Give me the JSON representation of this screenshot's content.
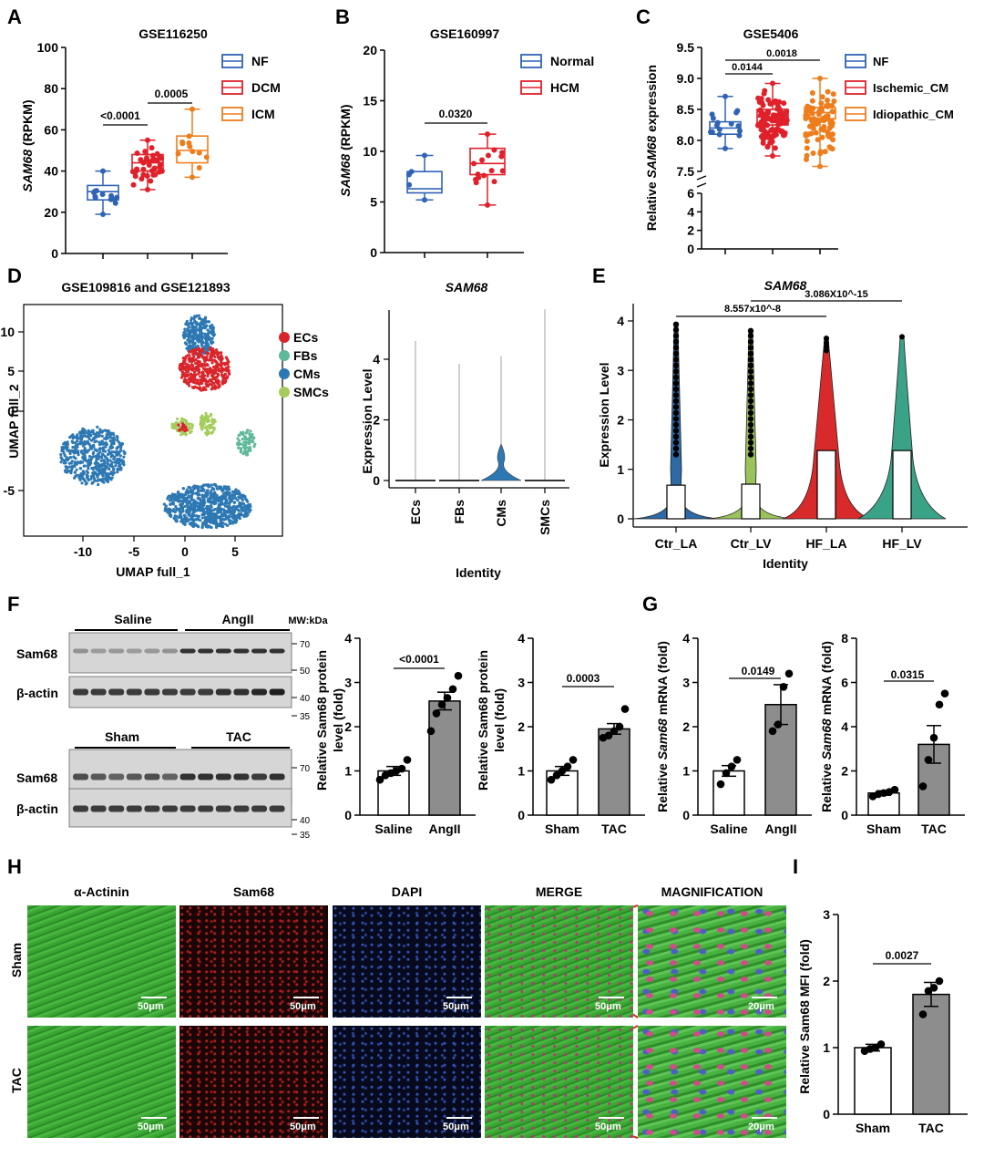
{
  "panels": {
    "A": "A",
    "B": "B",
    "C": "C",
    "D": "D",
    "E": "E",
    "F": "F",
    "G": "G",
    "H": "H",
    "I": "I"
  },
  "colors": {
    "blue": "#2f63b5",
    "red": "#e0202a",
    "orange": "#ee7d1c",
    "gray": "#8d8d8d",
    "ecs": "#d9242a",
    "fbs": "#5fb89b",
    "cms": "#2d78b3",
    "smcs": "#a4cd5c",
    "violin_la": "#2d6aa6",
    "violin_lv": "#9bc35b",
    "violin_hfla": "#d82a2a",
    "violin_hflv": "#3aa387",
    "microscopy_green": "#2fa32b",
    "microscopy_red": "#d62a2a",
    "microscopy_blue": "#3b63c8"
  },
  "panelA": {
    "title": "GSE116250",
    "ylabel_gene": "SAM68",
    "ylabel_unit": " (RPKM)",
    "yticks": [
      "0",
      "20",
      "40",
      "60",
      "80",
      "100"
    ],
    "legend": [
      "NF",
      "DCM",
      "ICM"
    ],
    "pvals": [
      "<0.0001",
      "0.0005"
    ]
  },
  "panelB": {
    "title": "GSE160997",
    "ylabel_gene": "SAM68",
    "ylabel_unit": " (RPKM)",
    "yticks": [
      "0",
      "5",
      "10",
      "15",
      "20"
    ],
    "legend": [
      "Normal",
      "HCM"
    ],
    "pvals": [
      "0.0320"
    ]
  },
  "panelC": {
    "title": "GSE5406",
    "ylabel_pre": "Relative ",
    "ylabel_gene": "SAM68",
    "ylabel_post": " expression",
    "yticks_top": [
      "7.5",
      "8.0",
      "8.5",
      "9.0",
      "9.5"
    ],
    "yticks_bottom": [
      "0",
      "2",
      "4",
      "6"
    ],
    "legend": [
      "NF",
      "Ischemic_CM",
      "Idiopathic_CM"
    ],
    "pvals": [
      "0.0144",
      "0.0018"
    ]
  },
  "panelD": {
    "title": "GSE109816 and GSE121893",
    "umap_xlabel": "UMAP full_1",
    "umap_ylabel": "UMAP full_2",
    "umap_xticks": [
      "-10",
      "-5",
      "0",
      "5"
    ],
    "umap_yticks": [
      "-5",
      "0",
      "5",
      "10"
    ],
    "legend": [
      "ECs",
      "FBs",
      "CMs",
      "SMCs"
    ],
    "violin_title": "SAM68",
    "violin_ylabel": "Expression Level",
    "violin_xlabel": "Identity",
    "violin_yticks": [
      "0",
      "2",
      "4"
    ],
    "violin_cats": [
      "ECs",
      "FBs",
      "CMs",
      "SMCs"
    ]
  },
  "panelE": {
    "title": "SAM68",
    "ylabel": "Expression Level",
    "xlabel": "Identity",
    "yticks": [
      "0",
      "1",
      "2",
      "3",
      "4"
    ],
    "cats": [
      "Ctr_LA",
      "Ctr_LV",
      "HF_LA",
      "HF_LV"
    ],
    "pvals": [
      "8.557x10^-8",
      "3.086X10^-15"
    ]
  },
  "panelF": {
    "blot1_groups": [
      "Saline",
      "AngII"
    ],
    "blot2_groups": [
      "Sham",
      "TAC"
    ],
    "mw_label": "MW:kDa",
    "row_labels": [
      "Sam68",
      "β-actin",
      "Sam68",
      "β-actin"
    ],
    "mw_marks": [
      "70",
      "50",
      "40",
      "35",
      "70",
      "40",
      "35"
    ],
    "bar1": {
      "ylabel1": "Relative Sam68 protein",
      "ylabel2": "level (fold)",
      "yticks": [
        "0",
        "1",
        "2",
        "3",
        "4"
      ],
      "cats": [
        "Saline",
        "AngII"
      ],
      "pval": "<0.0001"
    },
    "bar2": {
      "ylabel1": "Relative Sam68 protein",
      "ylabel2": "level (fold)",
      "yticks": [
        "0",
        "1",
        "2",
        "3",
        "4"
      ],
      "cats": [
        "Sham",
        "TAC"
      ],
      "pval": "0.0003"
    }
  },
  "panelG": {
    "bar1": {
      "ylabel_pre": "Relative ",
      "ylabel_gene": "Sam68",
      "ylabel_post": " mRNA (fold)",
      "yticks": [
        "0",
        "1",
        "2",
        "3",
        "4"
      ],
      "cats": [
        "Saline",
        "AngII"
      ],
      "pval": "0.0149"
    },
    "bar2": {
      "ylabel_pre": "Relative ",
      "ylabel_gene": "Sam68",
      "ylabel_post": " mRNA (fold)",
      "yticks": [
        "0",
        "2",
        "4",
        "6",
        "8"
      ],
      "cats": [
        "Sham",
        "TAC"
      ],
      "pval": "0.0315"
    }
  },
  "panelH": {
    "columns": [
      "α-Actinin",
      "Sam68",
      "DAPI",
      "MERGE",
      "MAGNIFICATION"
    ],
    "rows": [
      "Sham",
      "TAC"
    ],
    "scale_50": "50μm",
    "scale_20": "20μm"
  },
  "panelI": {
    "ylabel": "Relative Sam68 MFI (fold)",
    "yticks": [
      "0",
      "1",
      "2",
      "3"
    ],
    "cats": [
      "Sham",
      "TAC"
    ],
    "pval": "0.0027"
  },
  "chart_data": [
    {
      "type": "box",
      "panel": "A",
      "title": "GSE116250",
      "ylabel": "SAM68 (RPKM)",
      "ylim": [
        0,
        100
      ],
      "categories": [
        "NF",
        "DCM",
        "ICM"
      ],
      "series": [
        {
          "name": "NF",
          "min": 19,
          "q1": 26,
          "median": 30,
          "q3": 33,
          "max": 40
        },
        {
          "name": "DCM",
          "min": 31,
          "q1": 40,
          "median": 44,
          "q3": 48,
          "max": 55
        },
        {
          "name": "ICM",
          "min": 37,
          "q1": 44,
          "median": 50,
          "q3": 57,
          "max": 70
        }
      ]
    },
    {
      "type": "box",
      "panel": "B",
      "title": "GSE160997",
      "ylabel": "SAM68 (RPKM)",
      "ylim": [
        0,
        20
      ],
      "categories": [
        "Normal",
        "HCM"
      ],
      "series": [
        {
          "name": "Normal",
          "min": 5.2,
          "q1": 5.9,
          "median": 6.3,
          "q3": 8.0,
          "max": 9.6
        },
        {
          "name": "HCM",
          "min": 4.7,
          "q1": 7.7,
          "median": 8.8,
          "q3": 10.3,
          "max": 11.7
        }
      ]
    },
    {
      "type": "box",
      "panel": "C",
      "title": "GSE5406",
      "ylabel": "Relative SAM68 expression",
      "ylim": [
        7.5,
        9.5
      ],
      "categories": [
        "NF",
        "Ischemic_CM",
        "Idiopathic_CM"
      ],
      "series": [
        {
          "name": "NF",
          "min": 7.87,
          "q1": 8.1,
          "median": 8.2,
          "q3": 8.3,
          "max": 8.71
        },
        {
          "name": "Ischemic_CM",
          "min": 7.75,
          "q1": 8.25,
          "median": 8.38,
          "q3": 8.5,
          "max": 8.92
        },
        {
          "name": "Idiopathic_CM",
          "min": 7.58,
          "q1": 8.35,
          "median": 8.45,
          "q3": 8.53,
          "max": 9.0
        }
      ]
    },
    {
      "type": "bar",
      "panel": "F1",
      "categories": [
        "Saline",
        "AngII"
      ],
      "values": [
        1.0,
        2.58
      ],
      "errors": [
        0.1,
        0.2
      ],
      "ylim": [
        0,
        4
      ],
      "ylabel": "Relative Sam68 protein level (fold)",
      "points": [
        [
          0.8,
          0.9,
          0.95,
          1.0,
          1.05,
          1.25
        ],
        [
          1.9,
          2.3,
          2.5,
          2.65,
          2.85,
          3.15
        ]
      ]
    },
    {
      "type": "bar",
      "panel": "F2",
      "categories": [
        "Sham",
        "TAC"
      ],
      "values": [
        1.0,
        1.95
      ],
      "errors": [
        0.1,
        0.12
      ],
      "ylim": [
        0,
        4
      ],
      "ylabel": "Relative Sam68 protein level (fold)",
      "points": [
        [
          0.8,
          0.9,
          1.0,
          1.1,
          1.25
        ],
        [
          1.75,
          1.8,
          1.9,
          2.0,
          2.4
        ]
      ]
    },
    {
      "type": "bar",
      "panel": "G1",
      "categories": [
        "Saline",
        "AngII"
      ],
      "values": [
        1.0,
        2.5
      ],
      "errors": [
        0.12,
        0.45
      ],
      "ylim": [
        0,
        4
      ],
      "ylabel": "Relative Sam68 mRNA (fold)",
      "points": [
        [
          0.7,
          0.95,
          1.1,
          1.25
        ],
        [
          1.9,
          2.05,
          2.9,
          3.2
        ]
      ]
    },
    {
      "type": "bar",
      "panel": "G2",
      "categories": [
        "Sham",
        "TAC"
      ],
      "values": [
        1.0,
        3.2
      ],
      "errors": [
        0.1,
        0.85
      ],
      "ylim": [
        0,
        8
      ],
      "ylabel": "Relative Sam68 mRNA (fold)",
      "points": [
        [
          0.85,
          0.95,
          1.0,
          1.05,
          1.15
        ],
        [
          1.3,
          2.5,
          3.5,
          5.0,
          5.5
        ]
      ]
    },
    {
      "type": "bar",
      "panel": "I",
      "categories": [
        "Sham",
        "TAC"
      ],
      "values": [
        1.0,
        1.8
      ],
      "errors": [
        0.05,
        0.18
      ],
      "ylim": [
        0,
        3
      ],
      "ylabel": "Relative Sam68 MFI (fold)",
      "points": [
        [
          0.95,
          0.98,
          1.0,
          1.05
        ],
        [
          1.5,
          1.85,
          1.9,
          2.0
        ]
      ]
    }
  ]
}
